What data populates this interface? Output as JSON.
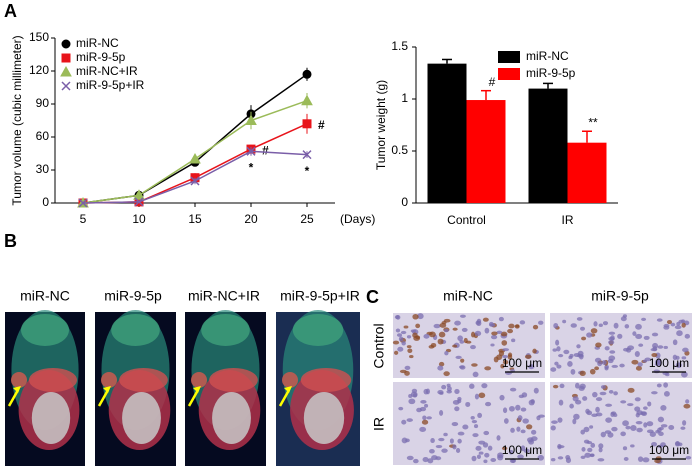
{
  "panel_labels": [
    "A",
    "B",
    "C"
  ],
  "chart_data": [
    {
      "type": "line",
      "y_label": "Tumor volume  (cubic millimeter)",
      "x_label": "(Days)",
      "x": [
        5,
        10,
        15,
        20,
        25
      ],
      "xlim": [
        2.5,
        27.5
      ],
      "xticks": [
        5,
        10,
        15,
        20,
        25
      ],
      "ylim": [
        0,
        150
      ],
      "yticks": [
        0,
        30,
        60,
        90,
        120,
        150
      ],
      "series": [
        {
          "name": "miR-NC",
          "color": "#000000",
          "marker": "circle",
          "values": [
            0,
            7,
            37,
            81,
            117
          ],
          "errors": [
            0,
            1,
            3,
            8,
            6
          ]
        },
        {
          "name": "miR-9-5p",
          "color": "#e8141b",
          "marker": "square",
          "values": [
            0,
            1,
            23,
            49,
            72
          ],
          "errors": [
            0,
            1,
            4,
            4,
            9
          ],
          "annotations": [
            null,
            null,
            null,
            "#",
            "#"
          ]
        },
        {
          "name": "miR-NC+IR",
          "color": "#9bbb59",
          "marker": "triangle",
          "values": [
            0,
            7,
            40,
            75,
            93
          ],
          "errors": [
            0,
            1,
            4,
            8,
            7
          ]
        },
        {
          "name": "miR-9-5p+IR",
          "color": "#7a5ea8",
          "marker": "x",
          "values": [
            0,
            1,
            20,
            47,
            44
          ],
          "errors": [
            0,
            1,
            3,
            4,
            3
          ],
          "annotations": [
            null,
            null,
            null,
            "*",
            "*"
          ]
        }
      ]
    },
    {
      "type": "bar",
      "y_label": "Tumor weight (g)",
      "categories": [
        "Control",
        "IR"
      ],
      "ylim": [
        0,
        1.5
      ],
      "yticks": [
        0,
        0.5,
        1,
        1.5
      ],
      "legend": "top-right",
      "series": [
        {
          "name": "miR-NC",
          "color": "#000000",
          "values": [
            1.34,
            1.1
          ],
          "errors": [
            0.04,
            0.05
          ]
        },
        {
          "name": "miR-9-5p",
          "color": "#ff0000",
          "values": [
            0.99,
            0.58
          ],
          "errors": [
            0.09,
            0.11
          ],
          "annotations": [
            "#",
            "**"
          ]
        }
      ]
    }
  ],
  "panel_b": {
    "labels": [
      "miR-NC",
      "miR-9-5p",
      "miR-NC+IR",
      "miR-9-5p+IR"
    ]
  },
  "panel_c": {
    "columns": [
      "miR-NC",
      "miR-9-5p"
    ],
    "rows": [
      "Control",
      "IR"
    ],
    "scale_bar": "100 μm"
  }
}
